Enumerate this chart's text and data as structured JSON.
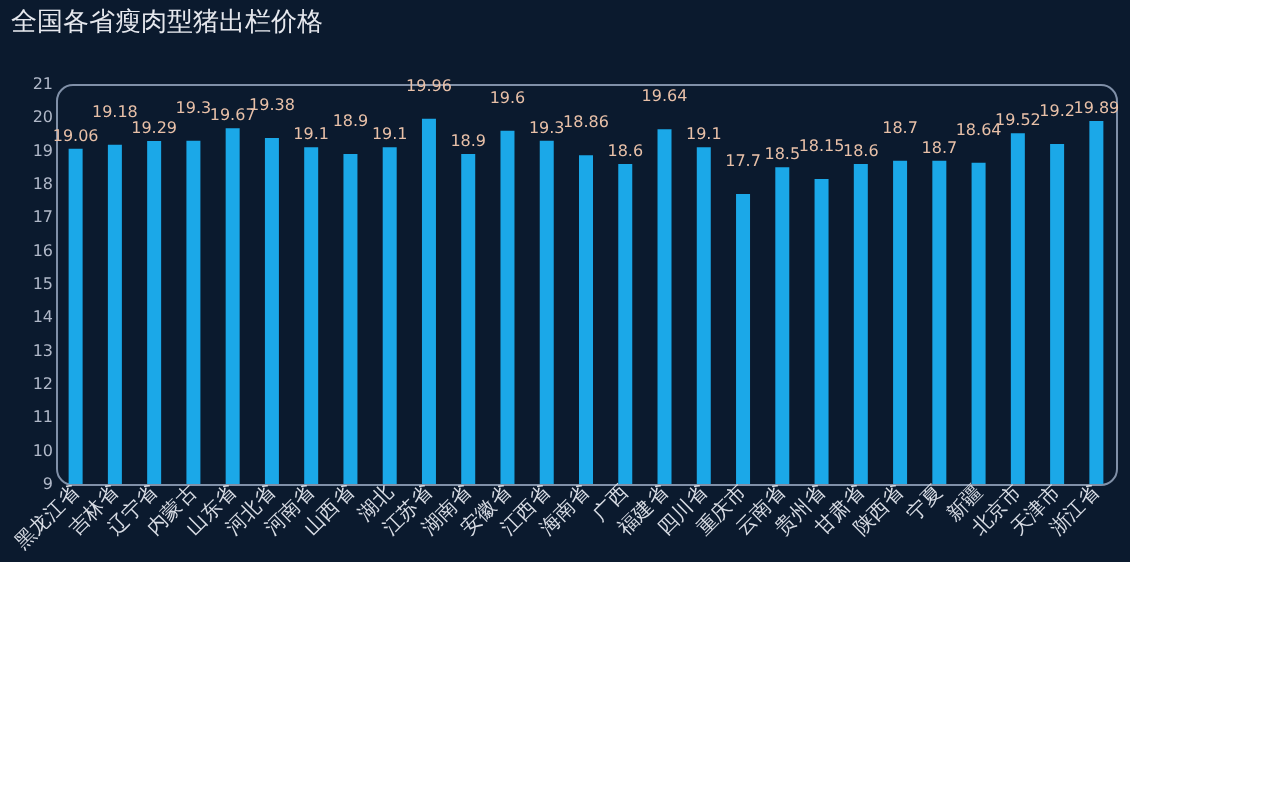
{
  "chart_data": {
    "type": "bar",
    "title": "全国各省瘦肉型猪出栏价格",
    "categories": [
      "黑龙江省",
      "吉林省",
      "辽宁省",
      "内蒙古",
      "山东省",
      "河北省",
      "河南省",
      "山西省",
      "湖北",
      "江苏省",
      "湖南省",
      "安徽省",
      "江西省",
      "海南省",
      "广西",
      "福建省",
      "四川省",
      "重庆市",
      "云南省",
      "贵州省",
      "甘肃省",
      "陕西省",
      "宁夏",
      "新疆",
      "北京市",
      "天津市",
      "浙江省"
    ],
    "values": [
      19.06,
      19.18,
      19.29,
      19.3,
      19.67,
      19.38,
      19.1,
      18.9,
      19.1,
      19.96,
      18.9,
      19.6,
      19.3,
      18.86,
      18.6,
      19.64,
      19.1,
      17.7,
      18.5,
      18.15,
      18.6,
      18.7,
      18.7,
      18.64,
      19.52,
      19.2,
      19.89
    ],
    "color": "#1ba8e8",
    "ylim": [
      9,
      21
    ],
    "yticks": [
      9,
      10,
      11,
      12,
      13,
      14,
      15,
      16,
      17,
      18,
      19,
      20,
      21
    ],
    "data_labels": true,
    "grid": false
  }
}
